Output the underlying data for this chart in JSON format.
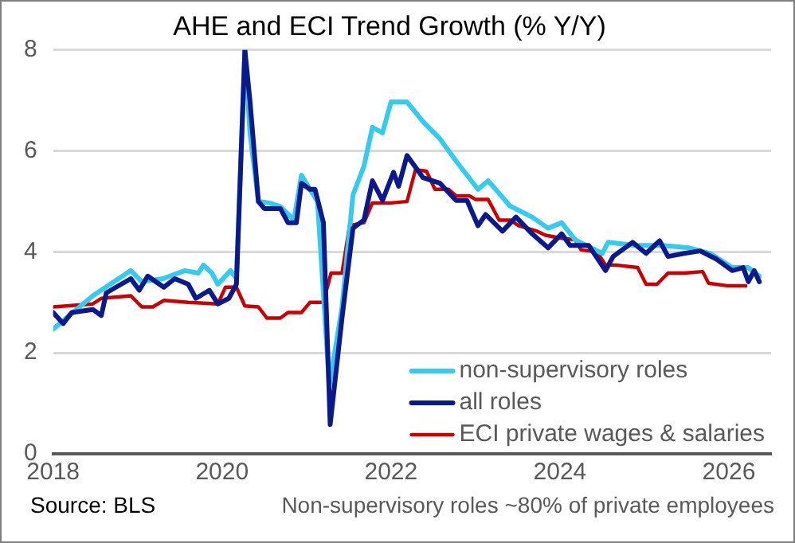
{
  "chart_data": {
    "type": "line",
    "title": "AHE and ECI Trend Growth (% Y/Y)",
    "xlim": [
      2018,
      2026.5
    ],
    "xticks": [
      2018,
      2020,
      2022,
      2024,
      2026
    ],
    "ylim": [
      0,
      8
    ],
    "yticks": [
      0,
      2,
      4,
      6,
      8
    ],
    "grid": "y",
    "legend": "bottom right",
    "marker": "none",
    "line_style": "solid",
    "annotations": [
      "Source: BLS",
      "Non-supervisory roles ~80% of private employees"
    ],
    "series": [
      {
        "name": "non-supervisory roles",
        "color": "#33ccee",
        "x": [
          2018,
          2018.47,
          2018.92,
          2019.05,
          2019.3,
          2019.56,
          2019.72,
          2019.78,
          2019.88,
          2019.95,
          2020.1,
          2020.17,
          2020.27,
          2020.33,
          2020.43,
          2020.56,
          2020.69,
          2020.85,
          2020.94,
          2021.04,
          2021.13,
          2021.27,
          2021.42,
          2021.55,
          2021.68,
          2021.78,
          2021.9,
          2022.0,
          2022.19,
          2022.38,
          2022.58,
          2022.77,
          2023.03,
          2023.15,
          2023.41,
          2023.67,
          2023.86,
          2024.02,
          2024.18,
          2024.5,
          2024.57,
          2024.89,
          2025.21,
          2025.53,
          2025.78,
          2026.04,
          2026.23,
          2026.36
        ],
        "values": [
          2.47,
          3.13,
          3.63,
          3.41,
          3.47,
          3.63,
          3.58,
          3.74,
          3.58,
          3.36,
          3.63,
          3.47,
          8.0,
          6.36,
          5.0,
          4.97,
          4.9,
          4.63,
          5.52,
          5.24,
          5.0,
          1.35,
          2.9,
          5.13,
          5.7,
          6.47,
          6.36,
          6.97,
          6.97,
          6.58,
          6.24,
          5.8,
          5.24,
          5.41,
          4.91,
          4.69,
          4.47,
          4.58,
          4.24,
          3.97,
          4.19,
          4.13,
          4.13,
          4.08,
          3.97,
          3.69,
          3.69,
          3.52
        ]
      },
      {
        "name": "all roles",
        "color": "#0a1a8c",
        "x": [
          2018,
          2018.12,
          2018.22,
          2018.47,
          2018.57,
          2018.63,
          2018.92,
          2019.02,
          2019.12,
          2019.31,
          2019.44,
          2019.6,
          2019.69,
          2019.85,
          2019.95,
          2020.08,
          2020.17,
          2020.27,
          2020.33,
          2020.43,
          2020.5,
          2020.69,
          2020.78,
          2020.88,
          2020.94,
          2021.04,
          2021.1,
          2021.2,
          2021.28,
          2021.42,
          2021.55,
          2021.68,
          2021.78,
          2021.9,
          2022.03,
          2022.09,
          2022.19,
          2022.38,
          2022.58,
          2022.77,
          2022.9,
          2023.03,
          2023.12,
          2023.32,
          2023.48,
          2023.67,
          2023.86,
          2024.02,
          2024.12,
          2024.34,
          2024.54,
          2024.63,
          2024.86,
          2025.02,
          2025.18,
          2025.28,
          2025.47,
          2025.66,
          2025.85,
          2026.04,
          2026.17,
          2026.23,
          2026.3,
          2026.36
        ],
        "values": [
          2.8,
          2.58,
          2.8,
          2.86,
          2.74,
          3.19,
          3.47,
          3.24,
          3.52,
          3.3,
          3.47,
          3.36,
          3.08,
          3.24,
          2.97,
          3.08,
          3.36,
          8.0,
          7.0,
          5.0,
          4.86,
          4.86,
          4.58,
          4.58,
          5.36,
          5.24,
          5.24,
          4.58,
          0.58,
          2.69,
          4.47,
          4.63,
          5.41,
          5.02,
          5.58,
          5.3,
          5.91,
          5.47,
          5.36,
          5.02,
          5.02,
          4.52,
          4.74,
          4.41,
          4.69,
          4.36,
          4.08,
          4.36,
          4.13,
          4.13,
          3.63,
          3.91,
          4.19,
          3.97,
          4.22,
          3.91,
          3.97,
          4.02,
          3.86,
          3.63,
          3.69,
          3.41,
          3.63,
          3.41
        ]
      },
      {
        "name": "ECI private wages & salaries",
        "color": "#cc0000",
        "x": [
          2018,
          2018.47,
          2018.57,
          2018.92,
          2019.05,
          2019.18,
          2019.31,
          2019.6,
          2019.95,
          2020.04,
          2020.17,
          2020.27,
          2020.43,
          2020.53,
          2020.69,
          2020.78,
          2020.94,
          2021.04,
          2021.2,
          2021.29,
          2021.42,
          2021.51,
          2021.68,
          2021.78,
          2022.0,
          2022.19,
          2022.29,
          2022.42,
          2022.52,
          2022.68,
          2022.77,
          2022.93,
          2023.0,
          2023.15,
          2023.28,
          2023.41,
          2023.51,
          2023.73,
          2023.83,
          2024.02,
          2024.18,
          2024.25,
          2024.44,
          2024.54,
          2024.66,
          2024.92,
          2025.02,
          2025.15,
          2025.28,
          2025.47,
          2025.69,
          2025.76,
          2025.98,
          2026.2
        ],
        "values": [
          2.91,
          2.97,
          3.08,
          3.13,
          2.91,
          2.91,
          3.04,
          3.0,
          2.97,
          3.3,
          3.3,
          2.93,
          2.91,
          2.69,
          2.69,
          2.8,
          2.8,
          3.0,
          3.0,
          3.58,
          3.58,
          4.52,
          4.58,
          4.97,
          4.97,
          5.0,
          5.63,
          5.6,
          5.24,
          5.24,
          5.11,
          5.11,
          5.04,
          5.04,
          4.63,
          4.63,
          4.52,
          4.41,
          4.33,
          4.27,
          4.24,
          4.04,
          4.0,
          3.74,
          3.74,
          3.69,
          3.36,
          3.36,
          3.58,
          3.58,
          3.61,
          3.38,
          3.33,
          3.33
        ]
      }
    ]
  }
}
